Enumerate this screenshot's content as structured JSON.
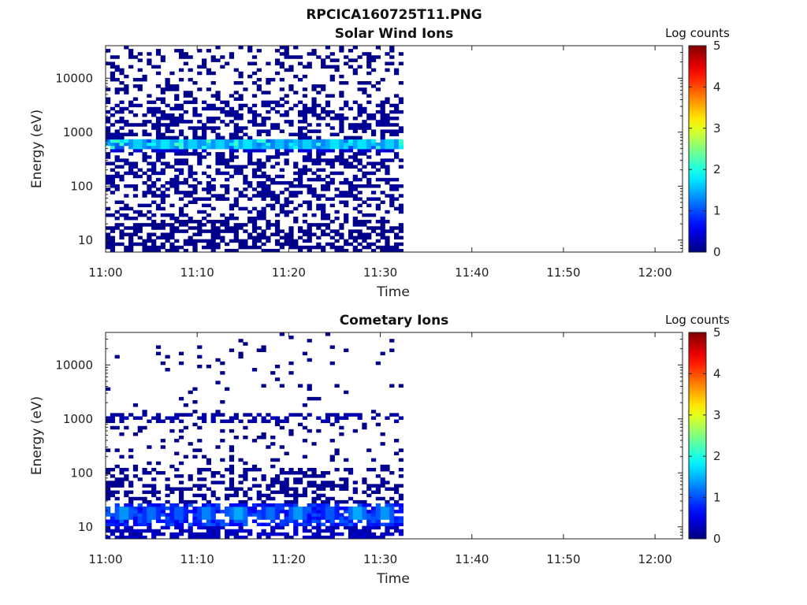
{
  "figure_title": "RPCICA160725T11.PNG",
  "chart_data": [
    {
      "type": "heatmap",
      "title": "Solar Wind Ions",
      "xlabel": "Time",
      "ylabel": "Energy (eV)",
      "x_ticks": [
        "11:00",
        "11:10",
        "11:20",
        "11:30",
        "11:40",
        "11:50",
        "12:00"
      ],
      "x_range": [
        "11:00",
        "12:03"
      ],
      "y_scale": "log",
      "y_ticks": [
        10,
        100,
        1000,
        10000
      ],
      "y_range": [
        6,
        40000
      ],
      "colorbar": {
        "label": "Log counts",
        "ticks": [
          0,
          1,
          2,
          3,
          4,
          5
        ],
        "range": [
          0,
          5
        ],
        "colormap": "jet"
      },
      "data_time_range": [
        "11:00",
        "11:32:30"
      ],
      "time_bin_minutes": 0.5,
      "bands": [
        {
          "e_min": 6,
          "e_max": 25,
          "fill": 0.55,
          "log_counts": 0.05
        },
        {
          "e_min": 25,
          "e_max": 60,
          "fill": 0.35,
          "log_counts": 0.1
        },
        {
          "e_min": 60,
          "e_max": 400,
          "fill": 0.45,
          "log_counts": 0.1
        },
        {
          "e_min": 400,
          "e_max": 500,
          "fill": 0.7,
          "log_counts": 0.4
        },
        {
          "e_min": 500,
          "e_max": 720,
          "fill": 0.95,
          "log_counts": 1.6
        },
        {
          "e_min": 720,
          "e_max": 4000,
          "fill": 0.45,
          "log_counts": 0.1
        },
        {
          "e_min": 4000,
          "e_max": 40000,
          "fill": 0.22,
          "log_counts": 0.05
        }
      ],
      "peaks": [
        {
          "time_min": 3.5,
          "e_min": 500,
          "e_max": 700,
          "log_counts": 1.8
        },
        {
          "time_min": 6.5,
          "e_min": 500,
          "e_max": 700,
          "log_counts": 1.9
        },
        {
          "time_min": 9.5,
          "e_min": 500,
          "e_max": 700,
          "log_counts": 1.8
        },
        {
          "time_min": 12.5,
          "e_min": 500,
          "e_max": 700,
          "log_counts": 1.8
        },
        {
          "time_min": 15.5,
          "e_min": 500,
          "e_max": 700,
          "log_counts": 1.9
        },
        {
          "time_min": 19,
          "e_min": 500,
          "e_max": 700,
          "log_counts": 1.7
        },
        {
          "time_min": 22,
          "e_min": 500,
          "e_max": 700,
          "log_counts": 1.8
        },
        {
          "time_min": 25,
          "e_min": 500,
          "e_max": 700,
          "log_counts": 1.9
        },
        {
          "time_min": 28,
          "e_min": 500,
          "e_max": 700,
          "log_counts": 1.9
        },
        {
          "time_min": 31,
          "e_min": 500,
          "e_max": 700,
          "log_counts": 1.8
        }
      ]
    },
    {
      "type": "heatmap",
      "title": "Cometary Ions",
      "xlabel": "Time",
      "ylabel": "Energy (eV)",
      "x_ticks": [
        "11:00",
        "11:10",
        "11:20",
        "11:30",
        "11:40",
        "11:50",
        "12:00"
      ],
      "x_range": [
        "11:00",
        "12:03"
      ],
      "y_scale": "log",
      "y_ticks": [
        10,
        100,
        1000,
        10000
      ],
      "y_range": [
        6,
        40000
      ],
      "colorbar": {
        "label": "Log counts",
        "ticks": [
          0,
          1,
          2,
          3,
          4,
          5
        ],
        "range": [
          0,
          5
        ],
        "colormap": "jet"
      },
      "data_time_range": [
        "11:00",
        "11:32:30"
      ],
      "time_bin_minutes": 0.5,
      "bands": [
        {
          "e_min": 6,
          "e_max": 10,
          "fill": 0.6,
          "log_counts": 0.3
        },
        {
          "e_min": 10,
          "e_max": 28,
          "fill": 0.75,
          "log_counts": 0.8
        },
        {
          "e_min": 28,
          "e_max": 120,
          "fill": 0.4,
          "log_counts": 0.1
        },
        {
          "e_min": 120,
          "e_max": 900,
          "fill": 0.12,
          "log_counts": 0.05
        },
        {
          "e_min": 900,
          "e_max": 1200,
          "fill": 0.45,
          "log_counts": 0.2
        },
        {
          "e_min": 1200,
          "e_max": 40000,
          "fill": 0.04,
          "log_counts": 0.05
        }
      ],
      "peaks": [
        {
          "time_min": 2,
          "e_min": 13,
          "e_max": 25,
          "log_counts": 1.5
        },
        {
          "time_min": 5,
          "e_min": 13,
          "e_max": 25,
          "log_counts": 1.3
        },
        {
          "time_min": 8,
          "e_min": 13,
          "e_max": 25,
          "log_counts": 1.2
        },
        {
          "time_min": 11,
          "e_min": 13,
          "e_max": 25,
          "log_counts": 1.4
        },
        {
          "time_min": 14.5,
          "e_min": 13,
          "e_max": 25,
          "log_counts": 1.6
        },
        {
          "time_min": 18,
          "e_min": 13,
          "e_max": 25,
          "log_counts": 1.3
        },
        {
          "time_min": 21,
          "e_min": 13,
          "e_max": 25,
          "log_counts": 1.5
        },
        {
          "time_min": 24.5,
          "e_min": 13,
          "e_max": 25,
          "log_counts": 1.2
        },
        {
          "time_min": 27.5,
          "e_min": 13,
          "e_max": 25,
          "log_counts": 1.6
        },
        {
          "time_min": 30.5,
          "e_min": 13,
          "e_max": 25,
          "log_counts": 1.5
        }
      ]
    }
  ]
}
